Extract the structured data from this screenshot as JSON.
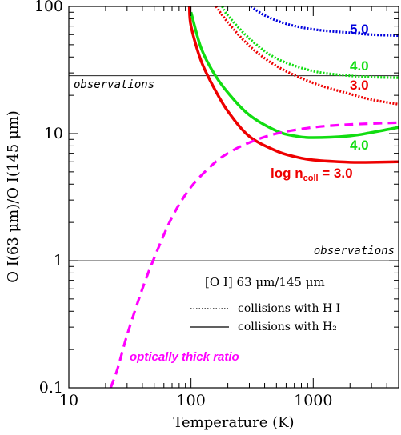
{
  "colors": {
    "red": "#ee0000",
    "green": "#11dd11",
    "blue": "#0000dd",
    "magenta": "#ff00ff"
  },
  "chart_data": {
    "type": "line",
    "title": "",
    "xlabel": "Temperature (K)",
    "ylabel": "O I(63 μm)/O I(145 μm)",
    "xscale": "log",
    "yscale": "log",
    "xlim": [
      10,
      5000
    ],
    "ylim": [
      0.1,
      100
    ],
    "xticks": [
      {
        "value": 10,
        "label": "10"
      },
      {
        "value": 100,
        "label": "100"
      },
      {
        "value": 1000,
        "label": "1000"
      }
    ],
    "yticks": [
      {
        "value": 0.1,
        "label": "0.1"
      },
      {
        "value": 1,
        "label": "1"
      },
      {
        "value": 10,
        "label": "10"
      },
      {
        "value": 100,
        "label": "100"
      }
    ],
    "grid": false,
    "legend": {
      "placement": "inside lower-right",
      "title": "[O I] 63 μm/145 μm",
      "entries": [
        {
          "style": "dotted",
          "label": "collisions with H I"
        },
        {
          "style": "solid",
          "label": "collisions with H₂"
        }
      ]
    },
    "observation_lines": [
      {
        "y": 28.5,
        "label": "observations",
        "label_position": "left"
      },
      {
        "y": 1.0,
        "label": "observations",
        "label_position": "right"
      }
    ],
    "series": [
      {
        "label": "log n_coll = 3.0",
        "label_prefix": "log n",
        "label_sub": "coll",
        "label_suffix": " = 3.0",
        "color": "red",
        "style": "solid",
        "x": [
          97,
          100,
          120,
          150,
          200,
          300,
          500,
          700,
          1000,
          2000,
          3000,
          5000
        ],
        "y": [
          100,
          70,
          38,
          24,
          15,
          9.5,
          7.3,
          6.6,
          6.2,
          5.95,
          5.95,
          6.0
        ]
      },
      {
        "label": "4.0",
        "color": "green",
        "style": "solid",
        "x": [
          100,
          120,
          150,
          200,
          300,
          500,
          700,
          1000,
          2000,
          3000,
          5000
        ],
        "y": [
          90,
          48,
          31,
          21,
          14,
          10.5,
          9.6,
          9.3,
          9.6,
          10.2,
          11.2
        ]
      },
      {
        "label": "3.0",
        "color": "red",
        "style": "dotted",
        "x": [
          160,
          200,
          300,
          500,
          1000,
          2000,
          3000,
          5000
        ],
        "y": [
          100,
          75,
          49,
          34,
          25,
          20.5,
          18.5,
          17
        ]
      },
      {
        "label": "4.0",
        "color": "green",
        "style": "dotted",
        "x": [
          180,
          200,
          300,
          500,
          1000,
          2000,
          3000,
          5000
        ],
        "y": [
          100,
          85,
          56,
          39,
          31,
          28.5,
          27.8,
          27.5
        ]
      },
      {
        "label": "5.0",
        "color": "blue",
        "style": "dotted",
        "x": [
          310,
          400,
          600,
          1000,
          2000,
          3000,
          5000
        ],
        "y": [
          100,
          85,
          73,
          66,
          62,
          60,
          59
        ]
      },
      {
        "label": "optically thick ratio",
        "color": "magenta",
        "style": "dashed",
        "x": [
          22,
          25,
          30,
          40,
          50,
          70,
          100,
          150,
          200,
          300,
          500,
          1000,
          2000,
          5000
        ],
        "y": [
          0.1,
          0.14,
          0.26,
          0.6,
          1.05,
          2.2,
          3.8,
          5.7,
          7.0,
          8.5,
          10.0,
          11.2,
          11.8,
          12.2
        ]
      }
    ]
  }
}
